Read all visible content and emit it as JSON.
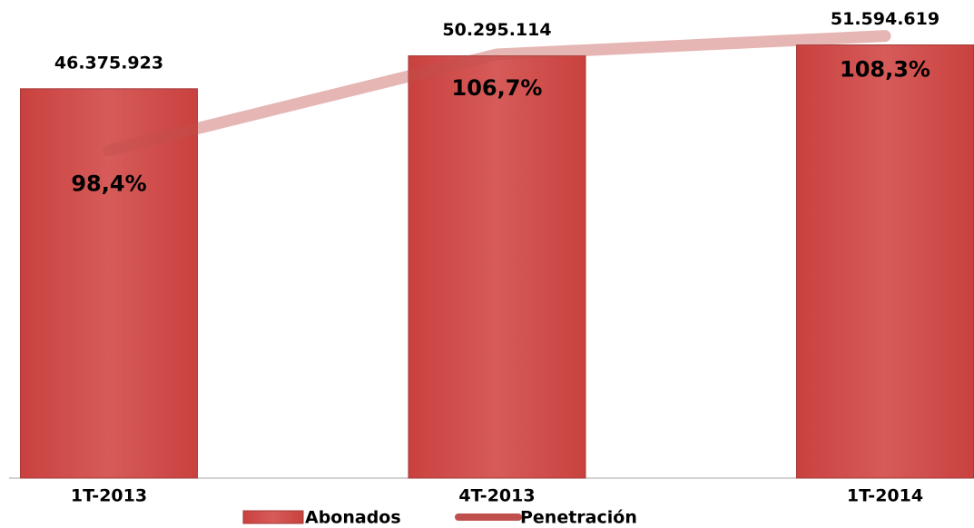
{
  "chart_data": {
    "type": "bar",
    "categories": [
      "1T-2013",
      "4T-2013",
      "1T-2014"
    ],
    "series": [
      {
        "name": "Abonados",
        "type": "bar",
        "color": "#d05351",
        "values": [
          46375923,
          50295114,
          51594619
        ],
        "value_labels": [
          "46.375.923",
          "50.295.114",
          "51.594.619"
        ]
      },
      {
        "name": "Penetración",
        "type": "line",
        "axis": "y2",
        "color": "#c0504d",
        "values": [
          98.4,
          106.7,
          108.3
        ],
        "value_labels": [
          "98,4%",
          "106,7%",
          "108,3%"
        ]
      }
    ],
    "ylim": [
      0,
      55000000
    ],
    "y2lim": [
      70,
      110
    ]
  }
}
